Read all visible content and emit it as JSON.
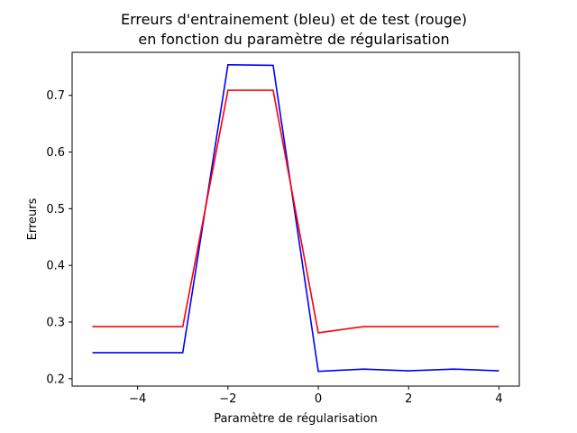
{
  "chart_data": {
    "type": "line",
    "title_lines": [
      "Erreurs d'entrainement (bleu) et de test (rouge)",
      "en fonction du paramètre de régularisation"
    ],
    "xlabel": "Paramètre de régularisation",
    "ylabel": "Erreurs",
    "xlim": [
      -5.45,
      4.45
    ],
    "ylim": [
      0.187,
      0.776
    ],
    "xticks": [
      -4,
      -2,
      0,
      2,
      4
    ],
    "xtick_labels": [
      "−4",
      "−2",
      "0",
      "2",
      "4"
    ],
    "yticks": [
      0.2,
      0.3,
      0.4,
      0.5,
      0.6,
      0.7
    ],
    "ytick_labels": [
      "0.2",
      "0.3",
      "0.4",
      "0.5",
      "0.6",
      "0.7"
    ],
    "grid": false,
    "x": [
      -5,
      -4,
      -3,
      -2,
      -1,
      0,
      1,
      2,
      3,
      4
    ],
    "series": [
      {
        "color": "#0000ff",
        "values": [
          0.246,
          0.246,
          0.246,
          0.754,
          0.753,
          0.213,
          0.217,
          0.214,
          0.217,
          0.214
        ]
      },
      {
        "color": "#ff0000",
        "values": [
          0.292,
          0.292,
          0.292,
          0.709,
          0.709,
          0.281,
          0.292,
          0.292,
          0.292,
          0.292
        ]
      }
    ]
  }
}
